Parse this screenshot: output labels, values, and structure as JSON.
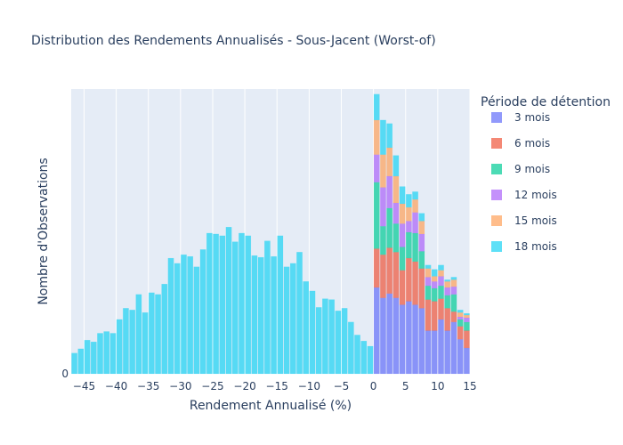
{
  "chart_data": {
    "type": "bar",
    "barmode": "stack",
    "title": "Distribution des Rendements Annualisés - Sous-Jacent (Worst-of)",
    "xlabel": "Rendement Annualisé (%)",
    "ylabel": "Nombre d'Observations",
    "xlim": [
      -47,
      15
    ],
    "ylim": [
      0,
      330
    ],
    "x_ticks": [
      "−45",
      "−40",
      "−35",
      "−30",
      "−25",
      "−20",
      "−15",
      "−10",
      "−5",
      "0",
      "5",
      "10",
      "15"
    ],
    "y_ticks": [
      "0"
    ],
    "bin_width": 1,
    "legend": {
      "title": "Période de détention",
      "position": "right"
    },
    "series": [
      {
        "name": "3 mois",
        "color": "#636efa",
        "x": [
          0.5,
          1.5,
          2.5,
          3.5,
          4.5,
          5.5,
          6.5,
          7.5,
          8.5,
          9.5,
          10.5,
          11.5,
          12.5,
          13.5,
          14.5
        ],
        "values": [
          100,
          88,
          93,
          88,
          80,
          84,
          80,
          76,
          50,
          50,
          63,
          50,
          60,
          40,
          30
        ]
      },
      {
        "name": "6 mois",
        "color": "#ef553b",
        "x": [
          0.5,
          1.5,
          2.5,
          3.5,
          4.5,
          5.5,
          6.5,
          7.5,
          8.5,
          9.5,
          10.5,
          11.5,
          12.5,
          13.5,
          14.5
        ],
        "values": [
          45,
          50,
          53,
          53,
          40,
          50,
          50,
          46,
          36,
          34,
          24,
          26,
          12,
          15,
          20
        ]
      },
      {
        "name": "9 mois",
        "color": "#00cc96",
        "x": [
          0.5,
          1.5,
          2.5,
          3.5,
          4.5,
          5.5,
          6.5,
          7.5,
          8.5,
          9.5,
          10.5,
          11.5,
          12.5,
          13.5,
          14.5
        ],
        "values": [
          77,
          33,
          46,
          33,
          27,
          30,
          33,
          20,
          16,
          15,
          15,
          15,
          20,
          8,
          10
        ]
      },
      {
        "name": "12 mois",
        "color": "#ab63fa",
        "x": [
          0.5,
          1.5,
          2.5,
          3.5,
          4.5,
          5.5,
          6.5,
          7.5,
          8.5,
          9.5,
          10.5,
          11.5,
          12.5,
          13.5,
          14.5
        ],
        "values": [
          32,
          45,
          37,
          24,
          27,
          13,
          24,
          20,
          10,
          8,
          11,
          9,
          9,
          3,
          5
        ]
      },
      {
        "name": "15 mois",
        "color": "#ffa15a",
        "x": [
          0.5,
          1.5,
          2.5,
          3.5,
          4.5,
          5.5,
          6.5,
          7.5,
          8.5,
          9.5,
          10.5,
          11.5,
          12.5,
          13.5,
          14.5
        ],
        "values": [
          40,
          38,
          33,
          31,
          23,
          16,
          15,
          15,
          10,
          6,
          7,
          7,
          8,
          5,
          3
        ]
      },
      {
        "name": "18 mois",
        "color": "#19d3f3",
        "x": [
          -46.5,
          -45.5,
          -44.5,
          -43.5,
          -42.5,
          -41.5,
          -40.5,
          -39.5,
          -38.5,
          -37.5,
          -36.5,
          -35.5,
          -34.5,
          -33.5,
          -32.5,
          -31.5,
          -30.5,
          -29.5,
          -28.5,
          -27.5,
          -26.5,
          -25.5,
          -24.5,
          -23.5,
          -22.5,
          -21.5,
          -20.5,
          -19.5,
          -18.5,
          -17.5,
          -16.5,
          -15.5,
          -14.5,
          -13.5,
          -12.5,
          -11.5,
          -10.5,
          -9.5,
          -8.5,
          -7.5,
          -6.5,
          -5.5,
          -4.5,
          -3.5,
          -2.5,
          -1.5,
          -0.5,
          0.5,
          1.5,
          2.5,
          3.5,
          4.5,
          5.5,
          6.5,
          7.5,
          8.5,
          9.5,
          10.5,
          11.5,
          12.5,
          13.5,
          14.5
        ],
        "values": [
          24,
          29,
          39,
          37,
          47,
          49,
          47,
          63,
          76,
          74,
          92,
          71,
          94,
          92,
          104,
          134,
          128,
          138,
          136,
          124,
          144,
          163,
          162,
          160,
          170,
          153,
          163,
          160,
          137,
          135,
          154,
          136,
          160,
          124,
          128,
          141,
          107,
          96,
          77,
          87,
          86,
          73,
          76,
          60,
          45,
          38,
          32,
          30,
          40,
          28,
          24,
          20,
          15,
          9,
          9,
          4,
          8,
          6,
          2,
          3,
          3,
          2
        ]
      }
    ]
  }
}
